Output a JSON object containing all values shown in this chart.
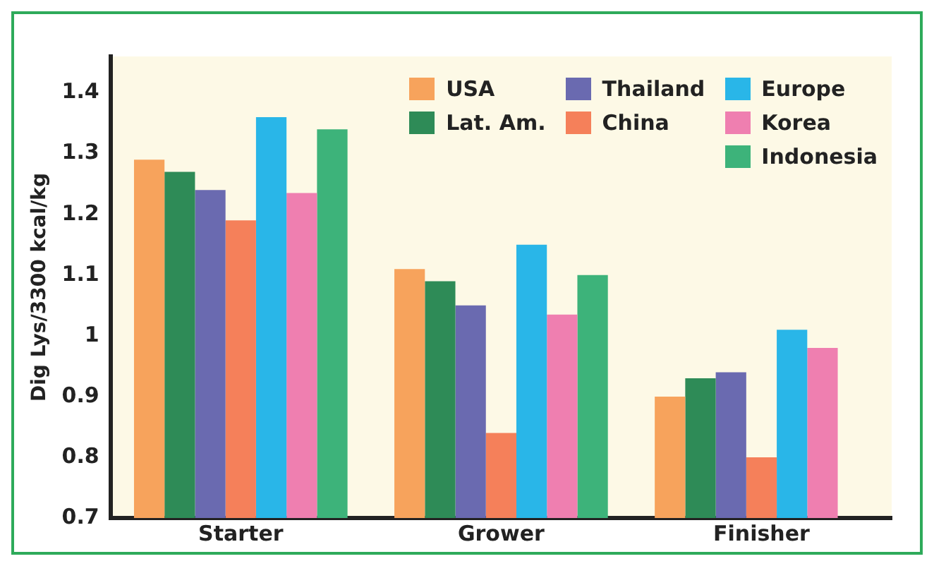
{
  "chart_data": {
    "type": "bar",
    "ylabel": "Dig Lys/3300 kcal/kg",
    "categories": [
      "Starter",
      "Grower",
      "Finisher"
    ],
    "series": [
      {
        "name": "USA",
        "color": "#f7a35c",
        "values": [
          1.29,
          1.11,
          0.9
        ]
      },
      {
        "name": "Lat. Am.",
        "color": "#2e8b57",
        "values": [
          1.27,
          1.09,
          0.93
        ]
      },
      {
        "name": "Thailand",
        "color": "#6a6ab0",
        "values": [
          1.24,
          1.05,
          0.94
        ]
      },
      {
        "name": "China",
        "color": "#f5805a",
        "values": [
          1.19,
          0.84,
          0.8
        ]
      },
      {
        "name": "Europe",
        "color": "#29b6e8",
        "values": [
          1.36,
          1.15,
          1.01
        ]
      },
      {
        "name": "Korea",
        "color": "#ef7fb0",
        "values": [
          1.235,
          1.035,
          0.98
        ]
      },
      {
        "name": "Indonesia",
        "color": "#3db37a",
        "values": [
          1.34,
          1.1,
          null
        ]
      }
    ],
    "ylim": [
      0.7,
      1.46
    ],
    "yticks": [
      0.7,
      0.8,
      0.9,
      1,
      1.1,
      1.2,
      1.3,
      1.4
    ],
    "grid": false,
    "legend": "top right"
  }
}
